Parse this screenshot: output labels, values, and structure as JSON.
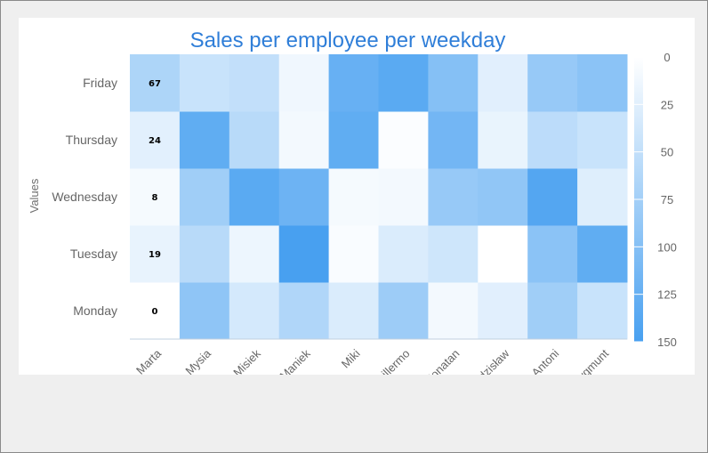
{
  "chart_data": {
    "type": "heatmap",
    "title": "Sales per employee per weekday",
    "xlabel": "",
    "ylabel": "Values",
    "x_categories": [
      "Marta",
      "Mysia",
      "Misiek",
      "Maniek",
      "Miki",
      "Guillermo",
      "Jonatan",
      "Zdzisław",
      "Antoni",
      "Zygmunt"
    ],
    "y_categories": [
      "Monday",
      "Tuesday",
      "Wednesday",
      "Thursday",
      "Friday"
    ],
    "values": [
      [
        0,
        92,
        35,
        65,
        30,
        80,
        10,
        25,
        78,
        45
      ],
      [
        19,
        58,
        15,
        150,
        5,
        30,
        40,
        0,
        95,
        130
      ],
      [
        8,
        78,
        135,
        120,
        8,
        10,
        85,
        90,
        140,
        27
      ],
      [
        24,
        130,
        58,
        10,
        130,
        3,
        115,
        18,
        55,
        45
      ],
      [
        67,
        45,
        50,
        12,
        125,
        135,
        100,
        25,
        85,
        95
      ]
    ],
    "data_labels_column": "Marta",
    "color_axis": {
      "min": 0,
      "max": 150,
      "min_color": "#ffffff",
      "max_color": "#48a0f0",
      "ticks": [
        0,
        25,
        50,
        75,
        100,
        125,
        150
      ]
    },
    "legend_position": "right"
  }
}
